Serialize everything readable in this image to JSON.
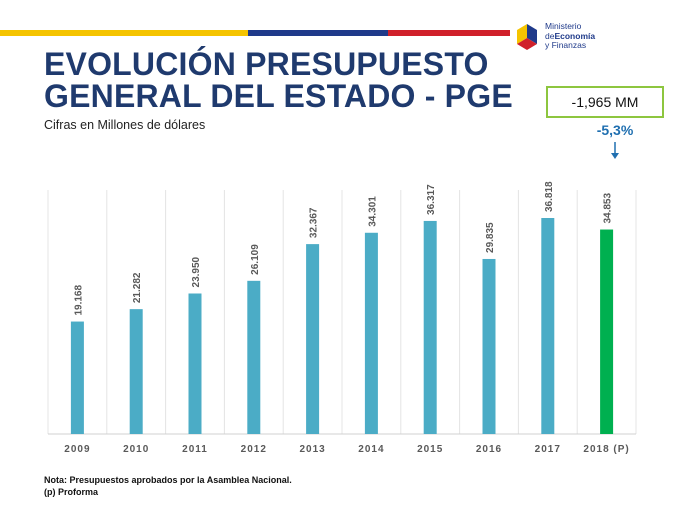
{
  "header": {
    "title_line1": "EVOLUCIÓN PRESUPUESTO",
    "title_line2": "GENERAL DEL ESTADO - PGE",
    "subtitle": "Cifras en Millones de dólares"
  },
  "logo": {
    "line1": "Ministerio",
    "line2_prefix": "de",
    "line2_bold": "Economía",
    "line3": "y Finanzas"
  },
  "callout": {
    "value": "-1,965 MM",
    "change": "-5,3%"
  },
  "footer": {
    "note": "Nota: Presupuestos aprobados por la Asamblea Nacional.",
    "legend": "(p) Proforma"
  },
  "colors": {
    "bar": "#4bacc6",
    "bar_highlight": "#00b050",
    "title": "#1f3a6e",
    "change_text": "#1f6fb0",
    "callout_border": "#8dc63f"
  },
  "chart_data": {
    "type": "bar",
    "categories": [
      "2009",
      "2010",
      "2011",
      "2012",
      "2013",
      "2014",
      "2015",
      "2016",
      "2017",
      "2018 (P)"
    ],
    "values": [
      19168,
      21282,
      23950,
      26109,
      32367,
      34301,
      36317,
      29835,
      36818,
      34853
    ],
    "labels": [
      "19.168",
      "21.282",
      "23.950",
      "26.109",
      "32.367",
      "34.301",
      "36.317",
      "29.835",
      "36.818",
      "34.853"
    ],
    "highlight_index": 9,
    "ylim": [
      0,
      45000
    ],
    "grid": false,
    "title": "",
    "xlabel": "",
    "ylabel": ""
  }
}
